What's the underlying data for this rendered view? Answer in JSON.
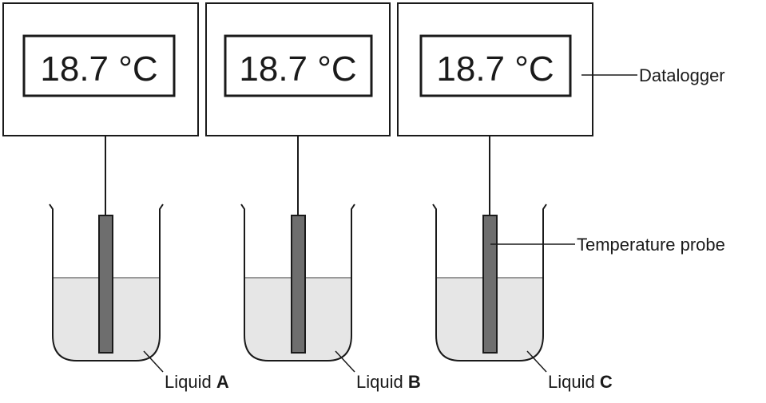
{
  "setups": [
    {
      "reading": "18.7 °C",
      "liquid_prefix": "Liquid ",
      "liquid_letter": "A"
    },
    {
      "reading": "18.7 °C",
      "liquid_prefix": "Liquid ",
      "liquid_letter": "B"
    },
    {
      "reading": "18.7 °C",
      "liquid_prefix": "Liquid ",
      "liquid_letter": "C"
    }
  ],
  "labels": {
    "datalogger": "Datalogger",
    "probe": "Temperature probe"
  },
  "colors": {
    "outline": "#1a1a1a",
    "liquid": "#e6e6e6",
    "probe": "#6e6e6e",
    "beaker": "#7a7a7a"
  }
}
